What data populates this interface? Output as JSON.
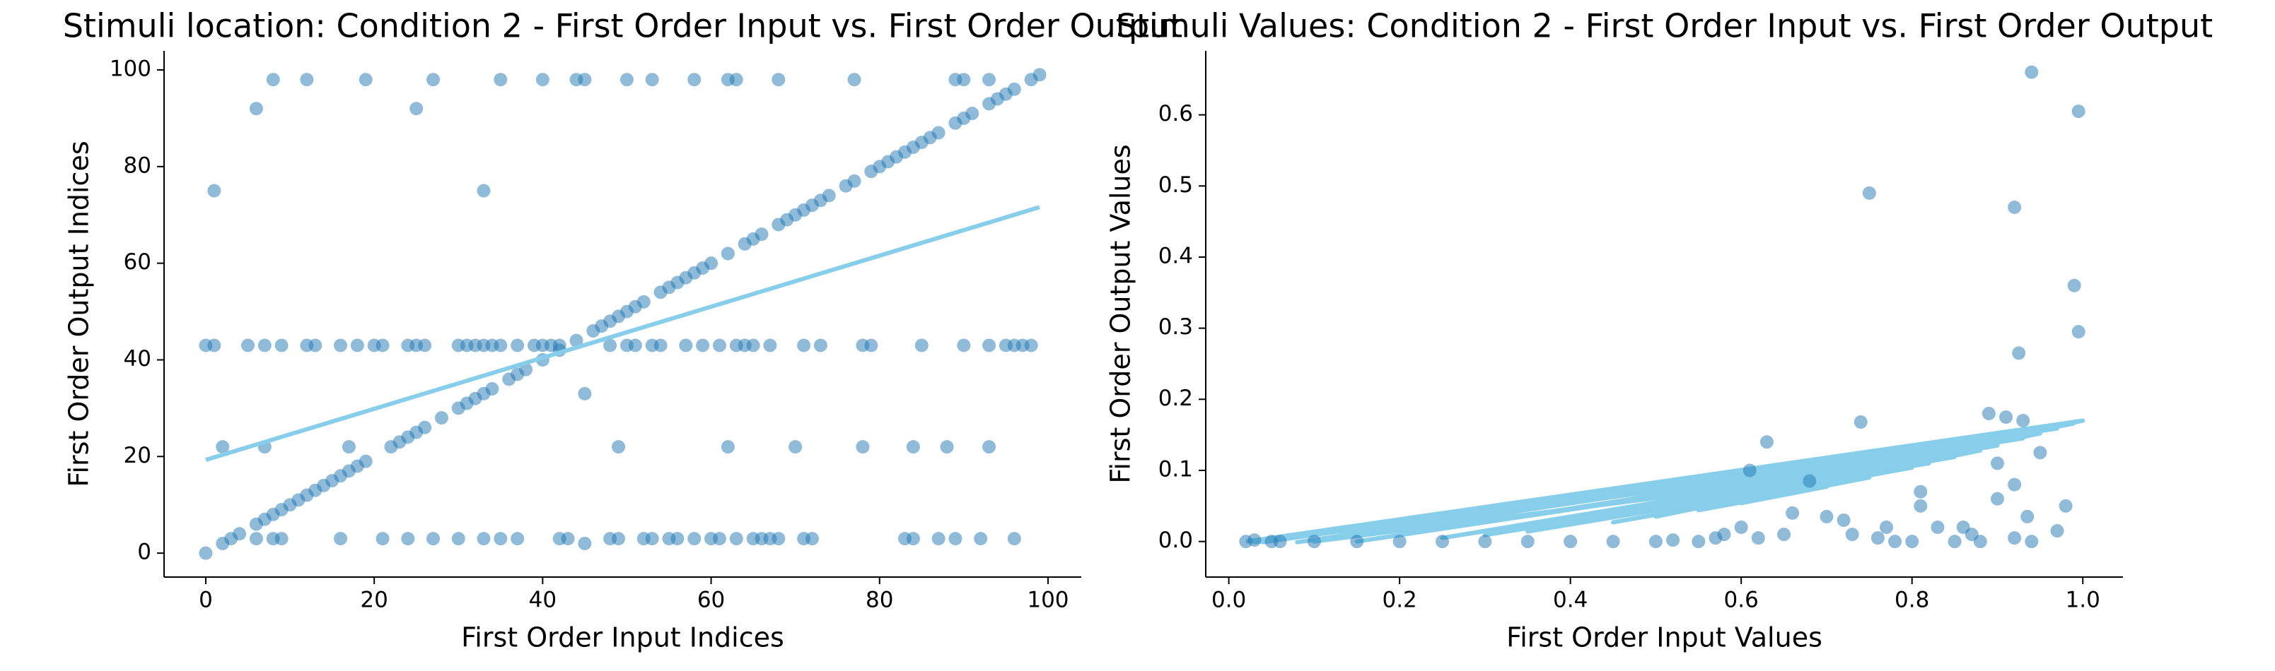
{
  "chart_data": [
    {
      "type": "scatter",
      "title": "Stimuli location: Condition 2 - First Order Input vs. First Order Output",
      "xlabel": "First Order Input Indices",
      "ylabel": "First Order Output Indices",
      "xlim": [
        -4.95,
        103.95
      ],
      "ylim": [
        -4.95,
        103.95
      ],
      "xticks": [
        0,
        20,
        40,
        60,
        80,
        100
      ],
      "yticks": [
        0,
        20,
        40,
        60,
        80,
        100
      ],
      "series": [
        {
          "type": "scatter",
          "color": "#1f77b4",
          "x": [
            2,
            3,
            4,
            6,
            7,
            8,
            9,
            10,
            11,
            12,
            13,
            14,
            15,
            16,
            17,
            18,
            19,
            22,
            23,
            24,
            25,
            26,
            28,
            30,
            31,
            32,
            33,
            34,
            36,
            37,
            38,
            40,
            42,
            44,
            46,
            47,
            48,
            49,
            50,
            51,
            52,
            54,
            55,
            56,
            57,
            58,
            59,
            60,
            62,
            64,
            65,
            66,
            68,
            69,
            70,
            71,
            72,
            73,
            74,
            76,
            77,
            79,
            80,
            81,
            82,
            83,
            84,
            85,
            86,
            87,
            89,
            90,
            91,
            93,
            94,
            95,
            96,
            98,
            99,
            8,
            12,
            19,
            27,
            35,
            40,
            44,
            45,
            50,
            53,
            58,
            62,
            63,
            68,
            77,
            89,
            90,
            93,
            0,
            1,
            5,
            7,
            9,
            12,
            13,
            16,
            18,
            20,
            21,
            24,
            25,
            26,
            30,
            31,
            32,
            33,
            34,
            35,
            37,
            39,
            40,
            41,
            42,
            48,
            50,
            51,
            53,
            54,
            57,
            59,
            61,
            63,
            64,
            65,
            67,
            71,
            73,
            78,
            79,
            85,
            90,
            93,
            95,
            96,
            97,
            98,
            2,
            7,
            17,
            49,
            62,
            70,
            78,
            84,
            88,
            93,
            6,
            8,
            9,
            16,
            21,
            24,
            27,
            30,
            33,
            35,
            37,
            42,
            43,
            48,
            49,
            52,
            53,
            55,
            56,
            58,
            60,
            61,
            63,
            65,
            66,
            67,
            68,
            71,
            72,
            83,
            84,
            87,
            89,
            92,
            96,
            0,
            1,
            6,
            25,
            33,
            45,
            45
          ],
          "values": [
            2,
            3,
            4,
            6,
            7,
            8,
            9,
            10,
            11,
            12,
            13,
            14,
            15,
            16,
            17,
            18,
            19,
            22,
            23,
            24,
            25,
            26,
            28,
            30,
            31,
            32,
            33,
            34,
            36,
            37,
            38,
            40,
            42,
            44,
            46,
            47,
            48,
            49,
            50,
            51,
            52,
            54,
            55,
            56,
            57,
            58,
            59,
            60,
            62,
            64,
            65,
            66,
            68,
            69,
            70,
            71,
            72,
            73,
            74,
            76,
            77,
            79,
            80,
            81,
            82,
            83,
            84,
            85,
            86,
            87,
            89,
            90,
            91,
            93,
            94,
            95,
            96,
            98,
            99,
            98,
            98,
            98,
            98,
            98,
            98,
            98,
            98,
            98,
            98,
            98,
            98,
            98,
            98,
            98,
            98,
            98,
            98,
            43,
            43,
            43,
            43,
            43,
            43,
            43,
            43,
            43,
            43,
            43,
            43,
            43,
            43,
            43,
            43,
            43,
            43,
            43,
            43,
            43,
            43,
            43,
            43,
            43,
            43,
            43,
            43,
            43,
            43,
            43,
            43,
            43,
            43,
            43,
            43,
            43,
            43,
            43,
            43,
            43,
            43,
            43,
            43,
            43,
            43,
            43,
            43,
            22,
            22,
            22,
            22,
            22,
            22,
            22,
            22,
            22,
            22,
            3,
            3,
            3,
            3,
            3,
            3,
            3,
            3,
            3,
            3,
            3,
            3,
            3,
            3,
            3,
            3,
            3,
            3,
            3,
            3,
            3,
            3,
            3,
            3,
            3,
            3,
            3,
            3,
            3,
            3,
            3,
            3,
            3,
            3,
            3,
            0,
            75,
            92,
            92,
            75,
            33,
            2
          ]
        },
        {
          "type": "line",
          "color": "#87ceeb",
          "x": [
            0,
            99
          ],
          "values": [
            19.3,
            71.6
          ]
        }
      ]
    },
    {
      "type": "scatter",
      "title": "Stimuli Values: Condition 2 - First Order Input vs. First Order Output",
      "xlabel": "First Order Input Values",
      "ylabel": "First Order Output Values",
      "xlim": [
        -0.027,
        1.047
      ],
      "ylim": [
        -0.05,
        0.69
      ],
      "xticks": [
        {
          "value": 0,
          "label": "0.0"
        },
        0.2,
        0.4,
        0.6,
        0.8,
        {
          "value": 1,
          "label": "1.0"
        }
      ],
      "yticks": [
        {
          "value": 0,
          "label": "0.0"
        },
        0.1,
        0.2,
        0.3,
        0.4,
        0.5,
        0.6
      ],
      "series": [
        {
          "type": "line",
          "color": "#87ceeb",
          "x": [
            0.02,
            1.0,
            0.04,
            0.97,
            0.08,
            0.93,
            0.15,
            0.9,
            0.25,
            0.85,
            0.35,
            0.8,
            0.45,
            0.75,
            0.55,
            0.7,
            0.6,
            1.0,
            0.03,
            0.88,
            0.5,
            0.95,
            0.1,
            0.82,
            0.3,
            0.99
          ],
          "values": [
            0.0,
            0.17,
            -0.001,
            0.159,
            -0.001,
            0.145,
            0.0,
            0.135,
            0.005,
            0.119,
            0.014,
            0.104,
            0.027,
            0.09,
            0.044,
            0.077,
            0.054,
            0.17,
            -0.001,
            0.128,
            0.035,
            0.152,
            0.0,
            0.11,
            0.009,
            0.166
          ]
        },
        {
          "type": "scatter",
          "color": "#1f77b4",
          "x": [
            0.75,
            0.92,
            0.94,
            0.995,
            0.99,
            0.995,
            0.925,
            0.89,
            0.91,
            0.93,
            0.74,
            0.63,
            0.61,
            0.81,
            0.81,
            0.92,
            0.9,
            0.95,
            0.98,
            0.97,
            0.935,
            0.92,
            0.94,
            0.86,
            0.87,
            0.88,
            0.78,
            0.76,
            0.77,
            0.72,
            0.7,
            0.68,
            0.66,
            0.65,
            0.62,
            0.6,
            0.57,
            0.55,
            0.5,
            0.45,
            0.4,
            0.35,
            0.3,
            0.25,
            0.2,
            0.15,
            0.1,
            0.05,
            0.02,
            0.03,
            0.06,
            0.52,
            0.58,
            0.73,
            0.83,
            0.85,
            0.8,
            0.9
          ],
          "values": [
            0.49,
            0.47,
            0.66,
            0.605,
            0.36,
            0.295,
            0.265,
            0.18,
            0.175,
            0.17,
            0.168,
            0.14,
            0.1,
            0.07,
            0.05,
            0.08,
            0.11,
            0.125,
            0.05,
            0.015,
            0.035,
            0.005,
            0.0,
            0.02,
            0.01,
            0.0,
            0.0,
            0.005,
            0.02,
            0.03,
            0.035,
            0.085,
            0.04,
            0.01,
            0.005,
            0.02,
            0.005,
            0.0,
            0.0,
            0.0,
            0.0,
            0.0,
            0.0,
            0.0,
            0.0,
            0.0,
            0.0,
            0.0,
            0.0,
            0.002,
            0.0,
            0.002,
            0.01,
            0.01,
            0.02,
            0.0,
            0.0,
            0.06
          ]
        }
      ]
    }
  ]
}
